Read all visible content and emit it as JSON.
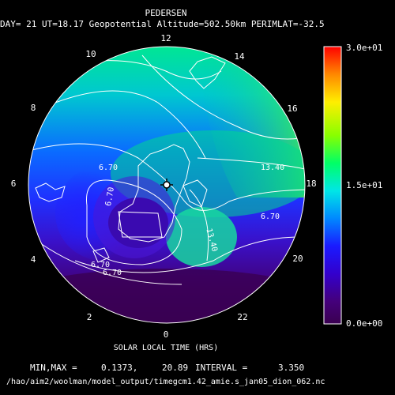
{
  "chart_data": {
    "type": "heatmap",
    "title": "PEDERSEN",
    "subtitle": "DAY= 21 UT=18.17 Geopotential Altitude=502.50km PERIMLAT=-32.5",
    "xlabel": "SOLAR LOCAL TIME (HRS)",
    "local_time_labels": [
      "0",
      "2",
      "4",
      "6",
      "8",
      "10",
      "12",
      "14",
      "16",
      "18",
      "20",
      "22"
    ],
    "contour_labels": [
      "6.70",
      "6.70",
      "6.70",
      "13.40",
      "13.40",
      "6.70",
      "6.70"
    ],
    "colorbar": {
      "max_label": "3.0e+01",
      "mid_label": "1.5e+01",
      "min_label": "0.0e+00",
      "range": [
        0,
        30
      ],
      "colors": [
        "#ff0000",
        "#ff8800",
        "#ffee00",
        "#88ff00",
        "#00ff66",
        "#00e6e6",
        "#0088ff",
        "#1a1aff",
        "#3300cc",
        "#44007a",
        "#3a0050"
      ]
    },
    "stats": {
      "label": "MIN,MAX =",
      "min": "0.1373,",
      "max": "20.89",
      "interval_label": "INTERVAL =",
      "interval": "3.350"
    },
    "file_path": "/hao/aim2/woolman/model_output/timegcm1.42_amie.s_jan05_dion_062.nc"
  }
}
